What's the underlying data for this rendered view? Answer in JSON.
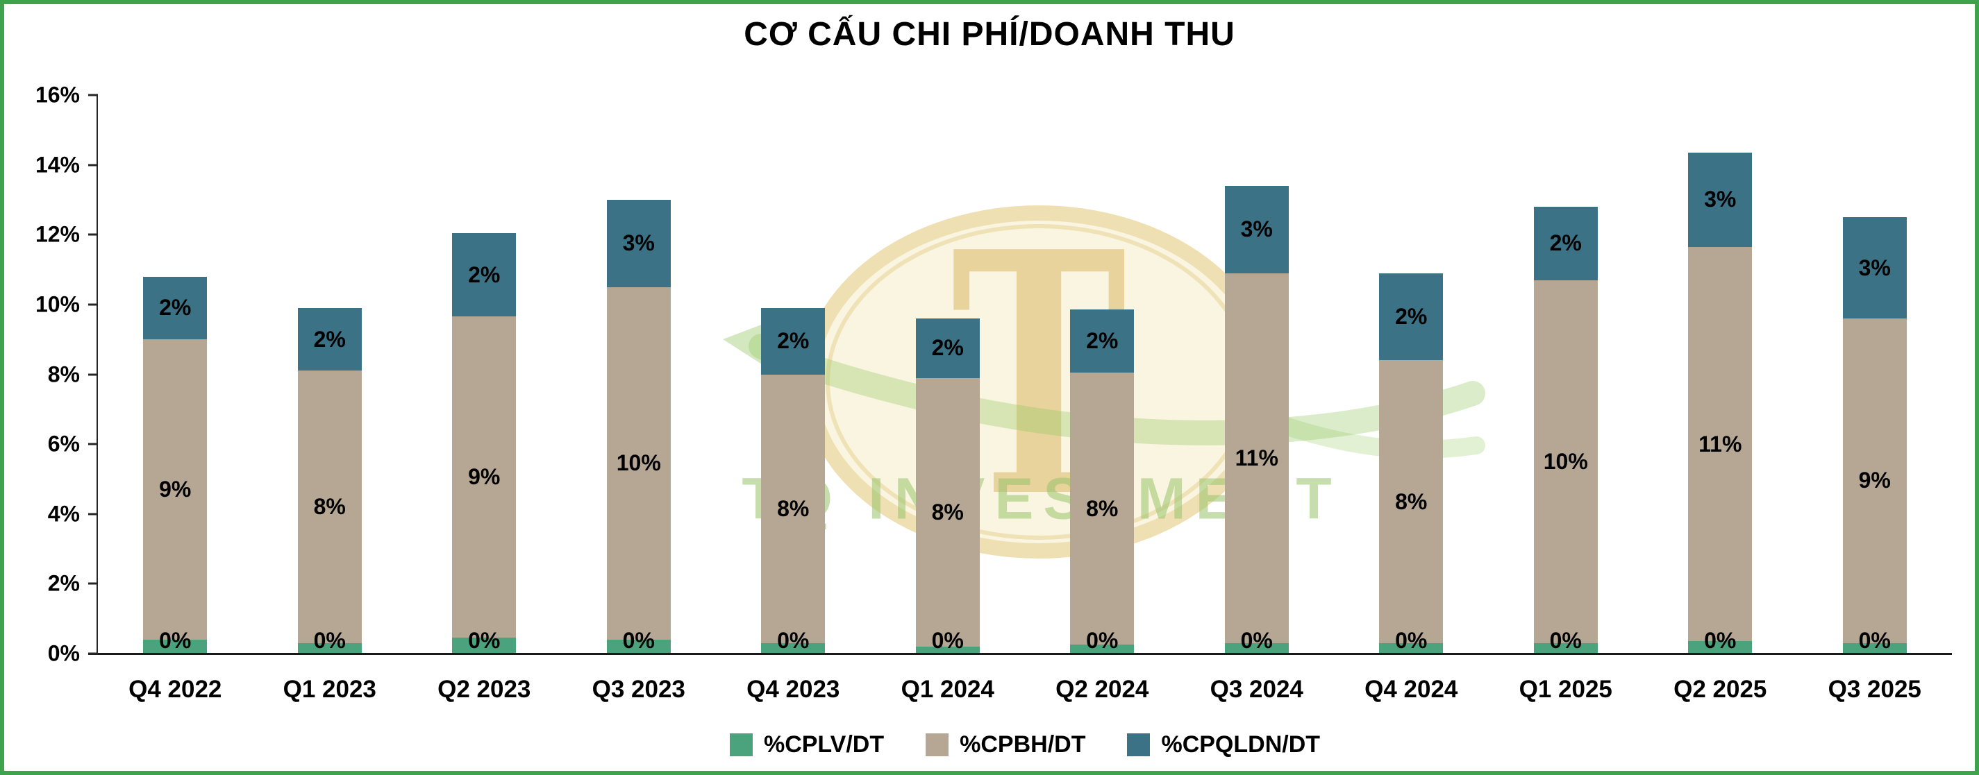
{
  "chart_data": {
    "type": "bar",
    "stacked": true,
    "title": "CƠ CẤU CHI PHÍ/DOANH THU",
    "categories": [
      "Q4 2022",
      "Q1 2023",
      "Q2 2023",
      "Q3 2023",
      "Q4 2023",
      "Q1 2024",
      "Q2 2024",
      "Q3 2024",
      "Q4 2024",
      "Q1 2025",
      "Q2 2025",
      "Q3 2025"
    ],
    "series": [
      {
        "name": "%CPLV/DT",
        "color": "#4ba37d",
        "values": [
          0.4,
          0.3,
          0.45,
          0.4,
          0.3,
          0.2,
          0.25,
          0.3,
          0.3,
          0.3,
          0.35,
          0.3
        ],
        "labels": [
          "0%",
          "0%",
          "0%",
          "0%",
          "0%",
          "0%",
          "0%",
          "0%",
          "0%",
          "0%",
          "0%",
          "0%"
        ]
      },
      {
        "name": "%CPBH/DT",
        "color": "#b5a794",
        "values": [
          8.6,
          7.8,
          9.2,
          10.1,
          7.7,
          7.7,
          7.8,
          10.6,
          8.1,
          10.4,
          11.3,
          9.3
        ],
        "labels": [
          "9%",
          "8%",
          "9%",
          "10%",
          "8%",
          "8%",
          "8%",
          "11%",
          "8%",
          "10%",
          "11%",
          "9%"
        ]
      },
      {
        "name": "%CPQLDN/DT",
        "color": "#3b7286",
        "values": [
          1.8,
          1.8,
          2.4,
          2.5,
          1.9,
          1.7,
          1.8,
          2.5,
          2.5,
          2.1,
          2.7,
          2.9
        ],
        "labels": [
          "2%",
          "2%",
          "2%",
          "3%",
          "2%",
          "2%",
          "2%",
          "3%",
          "2%",
          "2%",
          "3%",
          "3%"
        ]
      }
    ],
    "y_ticks": [
      "0%",
      "2%",
      "4%",
      "6%",
      "8%",
      "10%",
      "12%",
      "14%",
      "16%"
    ],
    "ylim": [
      0,
      16
    ],
    "grid": false,
    "legend_position": "bottom"
  },
  "frame": {
    "border_color": "#3fa24d",
    "background": "#ffffff"
  },
  "watermark": {
    "letter": "T",
    "text": "TQ INVESTMENT"
  }
}
